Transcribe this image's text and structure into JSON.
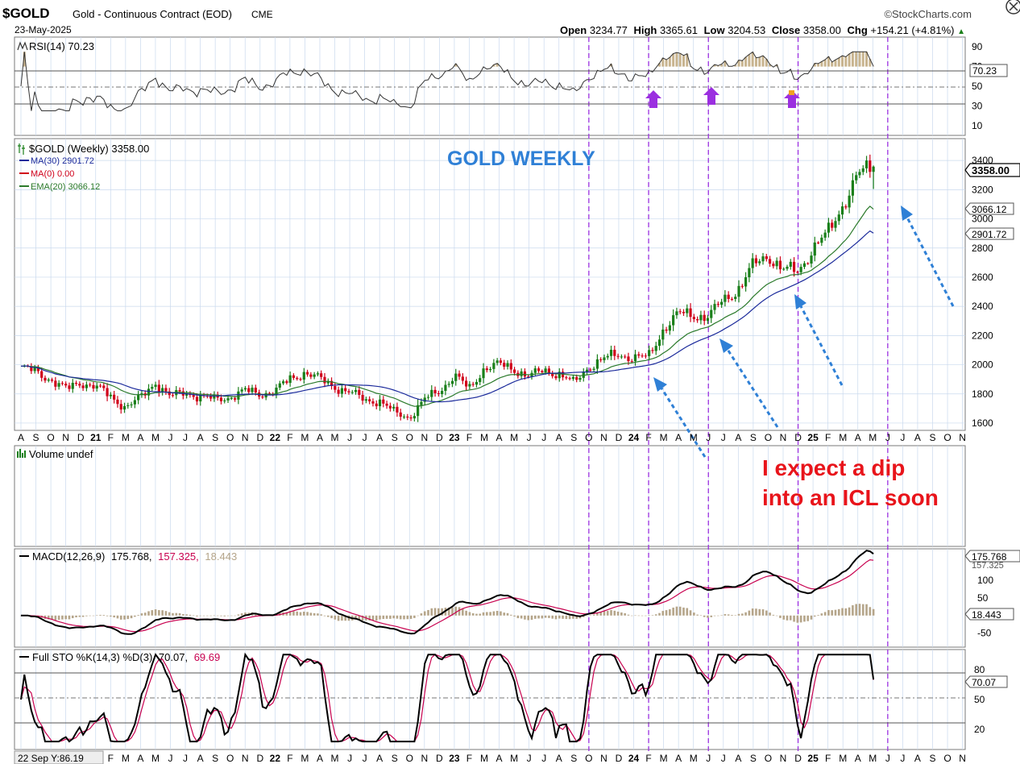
{
  "header": {
    "symbol": "$GOLD",
    "name": "Gold - Continuous Contract (EOD)",
    "exchange": "CME",
    "date": "23-May-2025",
    "brand": "©StockCharts.com",
    "open_label": "Open",
    "open": "3234.77",
    "high_label": "High",
    "high": "3365.61",
    "low_label": "Low",
    "low": "3204.53",
    "close_label": "Close",
    "close": "3358.00",
    "chg_label": "Chg",
    "chg": "+154.21 (+4.81%)",
    "up_arrow": "▲"
  },
  "colors": {
    "grid_major": "#c9d9ee",
    "ma30": "#1b2a9b",
    "ema20": "#2b7a2b",
    "ma0": "#d0001a",
    "up_candle": "#1a7f1a",
    "down_candle": "#d0001a",
    "price_bar": "#1a1a1a",
    "vline": "#9b30e0",
    "arrow_blue": "#2f80d6",
    "arrow_purple": "#9b2fe0",
    "macd_line": "#000000",
    "macd_signal": "#c8004f",
    "histogram": "#b5a58a",
    "annotation": "#e8141b",
    "title_blue": "#2f80d6",
    "background": "#ffffff",
    "panel_border": "#7a7a7a"
  },
  "rsi": {
    "label": "RSI(14) 70.23",
    "value_tag": "70.23",
    "ticks": [
      "90",
      "70",
      "50",
      "30",
      "10"
    ]
  },
  "price": {
    "legend_title": "$GOLD (Weekly) 3358.00",
    "legend_ma30": "MA(30) 2901.72",
    "legend_ma0": "MA(0) 0.00",
    "legend_ema20": "EMA(20) 3066.12",
    "overlay_title": "GOLD WEEKLY",
    "tag_close": "3358.00",
    "tag_ema": "3066.12",
    "tag_ma": "2901.72",
    "ticks": [
      "3400",
      "3200",
      "3000",
      "2800",
      "2600",
      "2400",
      "2200",
      "2000",
      "1800",
      "1600"
    ]
  },
  "x_axis": {
    "labels": [
      "A",
      "S",
      "O",
      "N",
      "D",
      "21",
      "F",
      "M",
      "A",
      "M",
      "J",
      "J",
      "A",
      "S",
      "O",
      "N",
      "D",
      "22",
      "F",
      "M",
      "A",
      "M",
      "J",
      "J",
      "A",
      "S",
      "O",
      "N",
      "D",
      "23",
      "F",
      "M",
      "A",
      "M",
      "J",
      "J",
      "A",
      "S",
      "O",
      "N",
      "D",
      "24",
      "F",
      "M",
      "A",
      "M",
      "J",
      "J",
      "A",
      "S",
      "O",
      "N",
      "D",
      "25",
      "F",
      "M",
      "A",
      "M",
      "J",
      "J",
      "A",
      "S",
      "O",
      "N"
    ]
  },
  "volume": {
    "label": "Volume undef",
    "annotation_line1": "I expect a dip",
    "annotation_line2": "into an ICL soon"
  },
  "macd": {
    "label_prefix": "MACD(12,26,9)",
    "label_macd": "175.768,",
    "label_signal": "157.325,",
    "label_hist": "18.443",
    "tag_macd": "175.768",
    "tag_signal": "157.325",
    "tag_hist": "18.443",
    "ticks": [
      "100",
      "50",
      "-50"
    ]
  },
  "sto": {
    "label_prefix": "Full STO %K(14,3) %D(3)",
    "label_k": "70.07,",
    "label_d": "69.69",
    "tag_k": "70.07",
    "ticks": [
      "80",
      "50",
      "20"
    ]
  },
  "footer": {
    "tooltip": "22 Sep Y:86.19"
  },
  "chart_data": {
    "type": "candlestick",
    "title": "$GOLD Gold - Continuous Contract (EOD) CME",
    "timeframe": "Weekly",
    "x_range": [
      "Aug 2020",
      "Oct 2025"
    ],
    "price_ylim": [
      1550,
      3550
    ],
    "price_weekly": [
      {
        "t": "2020-08",
        "close": 1980
      },
      {
        "t": "2020-09",
        "close": 1950
      },
      {
        "t": "2020-10",
        "close": 1900
      },
      {
        "t": "2020-11",
        "close": 1830
      },
      {
        "t": "2020-12",
        "close": 1880
      },
      {
        "t": "2021-01",
        "close": 1850
      },
      {
        "t": "2021-02",
        "close": 1780
      },
      {
        "t": "2021-03",
        "close": 1710
      },
      {
        "t": "2021-04",
        "close": 1770
      },
      {
        "t": "2021-05",
        "close": 1880
      },
      {
        "t": "2021-06",
        "close": 1780
      },
      {
        "t": "2021-07",
        "close": 1810
      },
      {
        "t": "2021-08",
        "close": 1780
      },
      {
        "t": "2021-09",
        "close": 1760
      },
      {
        "t": "2021-10",
        "close": 1780
      },
      {
        "t": "2021-11",
        "close": 1820
      },
      {
        "t": "2021-12",
        "close": 1800
      },
      {
        "t": "2022-01",
        "close": 1820
      },
      {
        "t": "2022-02",
        "close": 1900
      },
      {
        "t": "2022-03",
        "close": 1950
      },
      {
        "t": "2022-04",
        "close": 1900
      },
      {
        "t": "2022-05",
        "close": 1850
      },
      {
        "t": "2022-06",
        "close": 1810
      },
      {
        "t": "2022-07",
        "close": 1760
      },
      {
        "t": "2022-08",
        "close": 1750
      },
      {
        "t": "2022-09",
        "close": 1670
      },
      {
        "t": "2022-10",
        "close": 1640
      },
      {
        "t": "2022-11",
        "close": 1760
      },
      {
        "t": "2022-12",
        "close": 1820
      },
      {
        "t": "2023-01",
        "close": 1930
      },
      {
        "t": "2023-02",
        "close": 1830
      },
      {
        "t": "2023-03",
        "close": 1980
      },
      {
        "t": "2023-04",
        "close": 2000
      },
      {
        "t": "2023-05",
        "close": 1970
      },
      {
        "t": "2023-06",
        "close": 1920
      },
      {
        "t": "2023-07",
        "close": 1960
      },
      {
        "t": "2023-08",
        "close": 1940
      },
      {
        "t": "2023-09",
        "close": 1870
      },
      {
        "t": "2023-10",
        "close": 1990
      },
      {
        "t": "2023-11",
        "close": 2040
      },
      {
        "t": "2023-12",
        "close": 2070
      },
      {
        "t": "2024-01",
        "close": 2050
      },
      {
        "t": "2024-02",
        "close": 2050
      },
      {
        "t": "2024-03",
        "close": 2250
      },
      {
        "t": "2024-04",
        "close": 2350
      },
      {
        "t": "2024-05",
        "close": 2340
      },
      {
        "t": "2024-06",
        "close": 2330
      },
      {
        "t": "2024-07",
        "close": 2440
      },
      {
        "t": "2024-08",
        "close": 2520
      },
      {
        "t": "2024-09",
        "close": 2680
      },
      {
        "t": "2024-10",
        "close": 2750
      },
      {
        "t": "2024-11",
        "close": 2650
      },
      {
        "t": "2024-12",
        "close": 2640
      },
      {
        "t": "2025-01",
        "close": 2800
      },
      {
        "t": "2025-02",
        "close": 2900
      },
      {
        "t": "2025-03",
        "close": 3100
      },
      {
        "t": "2025-04",
        "close": 3300
      },
      {
        "t": "2025-05",
        "close": 3358
      }
    ],
    "last_bar": {
      "open": 3234.77,
      "high": 3365.61,
      "low": 3204.53,
      "close": 3358.0,
      "change": 154.21,
      "change_pct": 4.81
    },
    "indicators": {
      "rsi14": 70.23,
      "ma30": 2901.72,
      "ma0": 0.0,
      "ema20": 3066.12,
      "macd": 175.768,
      "macd_signal": 157.325,
      "macd_hist": 18.443,
      "sto_k": 70.07,
      "sto_d": 69.69
    },
    "vertical_markers": [
      "2023-10",
      "2024-02",
      "2024-06",
      "2024-12",
      "2025-06"
    ],
    "rsi_ylim": [
      0,
      100
    ],
    "macd_ylim": [
      -90,
      190
    ],
    "sto_ylim": [
      0,
      100
    ]
  }
}
